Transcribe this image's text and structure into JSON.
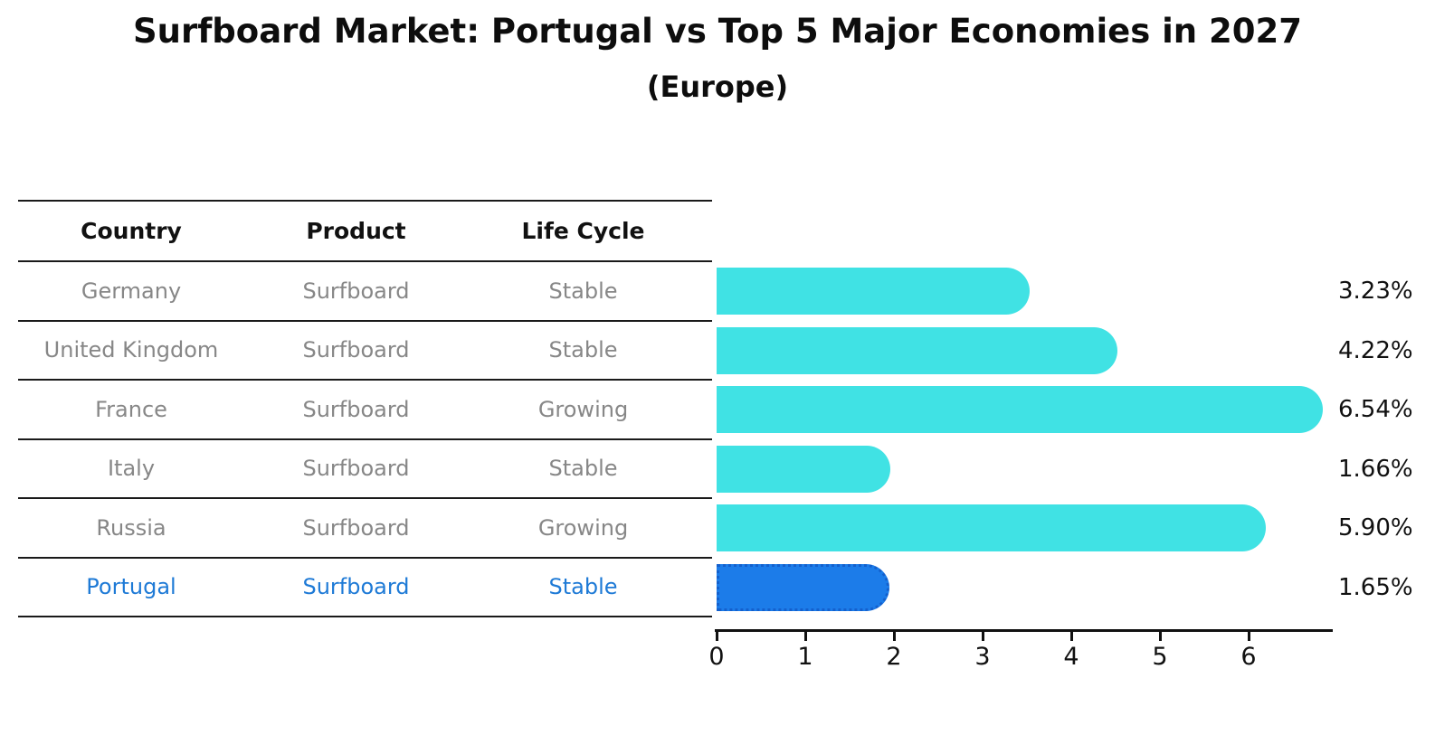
{
  "page": {
    "title": "Surfboard Market: Portugal vs Top 5 Major Economies in 2027",
    "subtitle": "(Europe)"
  },
  "table": {
    "headers": [
      "Country",
      "Product",
      "Life Cycle"
    ],
    "rows": [
      {
        "country": "Germany",
        "product": "Surfboard",
        "life_cycle": "Stable",
        "highlighted": false
      },
      {
        "country": "United Kingdom",
        "product": "Surfboard",
        "life_cycle": "Stable",
        "highlighted": false
      },
      {
        "country": "France",
        "product": "Surfboard",
        "life_cycle": "Growing",
        "highlighted": false
      },
      {
        "country": "Italy",
        "product": "Surfboard",
        "life_cycle": "Stable",
        "highlighted": false
      },
      {
        "country": "Russia",
        "product": "Surfboard",
        "life_cycle": "Growing",
        "highlighted": false
      },
      {
        "country": "Portugal",
        "product": "Surfboard",
        "life_cycle": "Stable",
        "highlighted": true
      }
    ]
  },
  "chart_data": {
    "type": "bar",
    "orientation": "horizontal",
    "title": "Surfboard Market: Portugal vs Top 5 Major Economies in 2027",
    "subtitle": "(Europe)",
    "categories": [
      "Germany",
      "United Kingdom",
      "France",
      "Italy",
      "Russia",
      "Portugal"
    ],
    "values": [
      3.23,
      4.22,
      6.54,
      1.66,
      5.9,
      1.65
    ],
    "value_labels": [
      "3.23%",
      "4.22%",
      "6.54%",
      "1.66%",
      "5.90%",
      "1.65%"
    ],
    "unit": "%",
    "xlabel": "",
    "ylabel": "",
    "xticks": [
      0,
      1,
      2,
      3,
      4,
      5,
      6
    ],
    "xlim": [
      0,
      6.93
    ],
    "grid": false,
    "legend_position": "none",
    "bar_color": "#40e2e4",
    "highlight_bar_color": "#1c7ce9",
    "highlight_border_color": "#1460cd",
    "highlight_index": 5
  },
  "colors": {
    "bar_cyan": "#40e2e4",
    "bar_blue": "#1c7ce9",
    "highlight_text_blue": "#1e7ad6",
    "row_text_gray": "#878787",
    "line_black": "#1a1a1a",
    "label_black": "#111111"
  }
}
